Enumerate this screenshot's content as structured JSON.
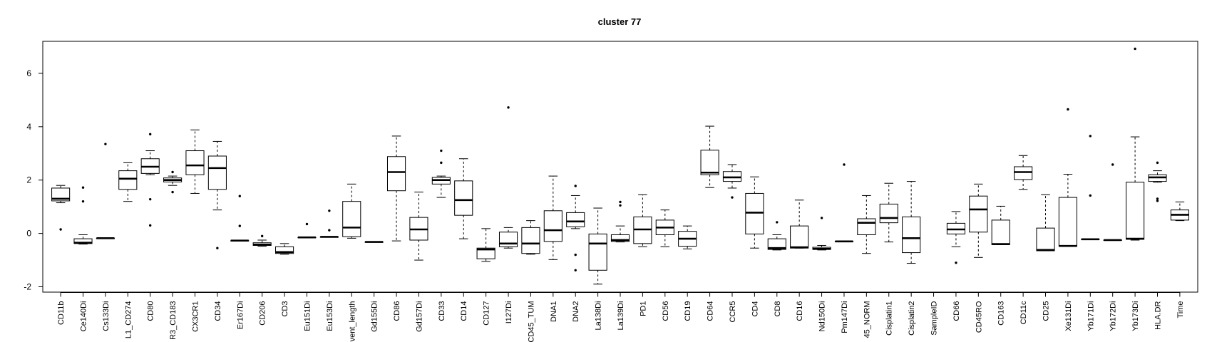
{
  "chart_data": {
    "type": "boxplot",
    "title": "cluster 77",
    "xlabel": "",
    "ylabel": "",
    "ylim": [
      -2.2,
      7.2
    ],
    "yticks": [
      -2,
      0,
      2,
      4,
      6
    ],
    "grid": false,
    "legend": "none",
    "categories": [
      "CD11b",
      "Ce140Di",
      "Cs133Di",
      "L1_CD274",
      "CD80",
      "R3_CD183",
      "CX3CR1",
      "CD34",
      "Er167Di",
      "CD206",
      "CD3",
      "Eu151Di",
      "Eu153Di",
      "vent_length",
      "Gd155Di",
      "CD86",
      "Gd157Di",
      "CD33",
      "CD14",
      "CD127",
      "I127Di",
      "CD45_TUM",
      "DNA1",
      "DNA2",
      "La138Di",
      "La139Di",
      "PD1",
      "CD56",
      "CD19",
      "CD64",
      "CCR5",
      "CD4",
      "CD8",
      "CD16",
      "Nd150Di",
      "Pm147Di",
      "45_NORM",
      "Cisplatin1",
      "Cisplatin2",
      "SampleID",
      "CD66",
      "CD45RO",
      "CD163",
      "CD11c",
      "CD25",
      "Xe131Di",
      "Yb171Di",
      "Yb172Di",
      "Yb173Di",
      "HLA.DR",
      "Time"
    ],
    "boxes": [
      {
        "lw": 1.15,
        "q1": 1.22,
        "med": 1.3,
        "q3": 1.7,
        "uw": 1.8,
        "out": [
          0.15
        ]
      },
      {
        "lw": -0.4,
        "q1": -0.38,
        "med": -0.35,
        "q3": -0.2,
        "uw": -0.05,
        "out": [
          1.72,
          1.2
        ]
      },
      {
        "lw": -0.18,
        "q1": -0.18,
        "med": -0.18,
        "q3": -0.18,
        "uw": -0.18,
        "out": [
          3.35
        ]
      },
      {
        "lw": 1.2,
        "q1": 1.65,
        "med": 2.05,
        "q3": 2.35,
        "uw": 2.65,
        "out": []
      },
      {
        "lw": 2.2,
        "q1": 2.25,
        "med": 2.5,
        "q3": 2.8,
        "uw": 3.1,
        "out": [
          3.72,
          1.28,
          0.3
        ]
      },
      {
        "lw": 1.8,
        "q1": 1.93,
        "med": 2.0,
        "q3": 2.08,
        "uw": 2.15,
        "out": [
          2.3,
          1.55
        ]
      },
      {
        "lw": 1.5,
        "q1": 2.2,
        "med": 2.55,
        "q3": 3.1,
        "uw": 3.88,
        "out": []
      },
      {
        "lw": 0.88,
        "q1": 1.65,
        "med": 2.45,
        "q3": 2.9,
        "uw": 3.45,
        "out": [
          -0.55
        ]
      },
      {
        "lw": -0.27,
        "q1": -0.27,
        "med": -0.27,
        "q3": -0.27,
        "uw": -0.27,
        "out": [
          1.4,
          0.28
        ]
      },
      {
        "lw": -0.48,
        "q1": -0.45,
        "med": -0.42,
        "q3": -0.35,
        "uw": -0.25,
        "out": [
          -0.1
        ]
      },
      {
        "lw": -0.78,
        "q1": -0.75,
        "med": -0.7,
        "q3": -0.5,
        "uw": -0.38,
        "out": []
      },
      {
        "lw": -0.15,
        "q1": -0.15,
        "med": -0.15,
        "q3": -0.15,
        "uw": -0.15,
        "out": [
          0.35
        ]
      },
      {
        "lw": -0.13,
        "q1": -0.13,
        "med": -0.13,
        "q3": -0.13,
        "uw": -0.13,
        "out": [
          0.85,
          0.12
        ]
      },
      {
        "lw": -0.18,
        "q1": -0.12,
        "med": 0.22,
        "q3": 1.2,
        "uw": 1.85,
        "out": []
      },
      {
        "lw": -0.32,
        "q1": -0.32,
        "med": -0.32,
        "q3": -0.32,
        "uw": -0.32,
        "out": []
      },
      {
        "lw": -0.28,
        "q1": 1.6,
        "med": 2.3,
        "q3": 2.88,
        "uw": 3.65,
        "out": []
      },
      {
        "lw": -1.0,
        "q1": -0.25,
        "med": 0.15,
        "q3": 0.6,
        "uw": 1.55,
        "out": []
      },
      {
        "lw": 1.35,
        "q1": 1.85,
        "med": 2.0,
        "q3": 2.1,
        "uw": 2.15,
        "out": [
          3.1,
          2.65
        ]
      },
      {
        "lw": -0.2,
        "q1": 0.68,
        "med": 1.25,
        "q3": 1.97,
        "uw": 2.8,
        "out": []
      },
      {
        "lw": -1.05,
        "q1": -0.95,
        "med": -0.6,
        "q3": -0.55,
        "uw": 0.18,
        "out": []
      },
      {
        "lw": -0.55,
        "q1": -0.5,
        "med": -0.38,
        "q3": 0.05,
        "uw": 0.22,
        "out": [
          4.72
        ]
      },
      {
        "lw": -0.78,
        "q1": -0.75,
        "med": -0.38,
        "q3": 0.22,
        "uw": 0.48,
        "out": []
      },
      {
        "lw": -0.98,
        "q1": -0.3,
        "med": 0.12,
        "q3": 0.85,
        "uw": 2.15,
        "out": []
      },
      {
        "lw": 0.18,
        "q1": 0.25,
        "med": 0.45,
        "q3": 0.78,
        "uw": 1.42,
        "out": [
          1.78,
          -0.8,
          -1.38
        ]
      },
      {
        "lw": -1.9,
        "q1": -1.38,
        "med": -0.38,
        "q3": -0.02,
        "uw": 0.95,
        "out": []
      },
      {
        "lw": -0.32,
        "q1": -0.3,
        "med": -0.25,
        "q3": -0.05,
        "uw": 0.28,
        "out": [
          1.18,
          1.05
        ]
      },
      {
        "lw": -0.5,
        "q1": -0.38,
        "med": 0.15,
        "q3": 0.62,
        "uw": 1.45,
        "out": []
      },
      {
        "lw": -0.5,
        "q1": -0.05,
        "med": 0.22,
        "q3": 0.5,
        "uw": 0.88,
        "out": []
      },
      {
        "lw": -0.58,
        "q1": -0.48,
        "med": -0.2,
        "q3": 0.08,
        "uw": 0.28,
        "out": []
      },
      {
        "lw": 1.72,
        "q1": 2.2,
        "med": 2.28,
        "q3": 3.12,
        "uw": 4.02,
        "out": []
      },
      {
        "lw": 1.7,
        "q1": 1.95,
        "med": 2.1,
        "q3": 2.32,
        "uw": 2.58,
        "out": [
          1.35
        ]
      },
      {
        "lw": -0.55,
        "q1": -0.02,
        "med": 0.78,
        "q3": 1.5,
        "uw": 2.12,
        "out": []
      },
      {
        "lw": -0.62,
        "q1": -0.6,
        "med": -0.55,
        "q3": -0.2,
        "uw": -0.05,
        "out": [
          0.42
        ]
      },
      {
        "lw": -0.55,
        "q1": -0.55,
        "med": -0.52,
        "q3": 0.28,
        "uw": 1.25,
        "out": []
      },
      {
        "lw": -0.62,
        "q1": -0.6,
        "med": -0.58,
        "q3": -0.52,
        "uw": -0.45,
        "out": [
          0.58
        ]
      },
      {
        "lw": -0.3,
        "q1": -0.3,
        "med": -0.3,
        "q3": -0.3,
        "uw": -0.3,
        "out": [
          2.58
        ]
      },
      {
        "lw": -0.75,
        "q1": -0.05,
        "med": 0.4,
        "q3": 0.55,
        "uw": 1.42,
        "out": []
      },
      {
        "lw": -0.32,
        "q1": 0.4,
        "med": 0.58,
        "q3": 1.1,
        "uw": 1.88,
        "out": []
      },
      {
        "lw": -1.12,
        "q1": -0.72,
        "med": -0.18,
        "q3": 0.62,
        "uw": 1.95,
        "out": []
      },
      null,
      {
        "lw": -0.5,
        "q1": -0.02,
        "med": 0.15,
        "q3": 0.38,
        "uw": 0.82,
        "out": [
          -1.1
        ]
      },
      {
        "lw": -0.9,
        "q1": 0.05,
        "med": 0.9,
        "q3": 1.4,
        "uw": 1.85,
        "out": []
      },
      {
        "lw": -0.42,
        "q1": -0.42,
        "med": -0.4,
        "q3": 0.5,
        "uw": 1.02,
        "out": []
      },
      {
        "lw": 1.65,
        "q1": 2.02,
        "med": 2.3,
        "q3": 2.5,
        "uw": 2.92,
        "out": []
      },
      {
        "lw": -0.65,
        "q1": -0.65,
        "med": -0.62,
        "q3": 0.2,
        "uw": 1.45,
        "out": []
      },
      {
        "lw": -0.48,
        "q1": -0.48,
        "med": -0.47,
        "q3": 1.35,
        "uw": 2.22,
        "out": [
          4.65
        ]
      },
      {
        "lw": -0.22,
        "q1": -0.22,
        "med": -0.22,
        "q3": -0.22,
        "uw": -0.22,
        "out": [
          3.65,
          1.42
        ]
      },
      {
        "lw": -0.25,
        "q1": -0.25,
        "med": -0.25,
        "q3": -0.25,
        "uw": -0.25,
        "out": [
          2.58
        ]
      },
      {
        "lw": -0.25,
        "q1": -0.22,
        "med": -0.2,
        "q3": 1.92,
        "uw": 3.62,
        "out": [
          6.92
        ]
      },
      {
        "lw": 1.92,
        "q1": 1.95,
        "med": 2.1,
        "q3": 2.2,
        "uw": 2.35,
        "out": [
          2.65,
          1.3,
          1.22
        ]
      },
      {
        "lw": 0.48,
        "q1": 0.5,
        "med": 0.7,
        "q3": 0.88,
        "uw": 1.18,
        "out": []
      }
    ]
  }
}
